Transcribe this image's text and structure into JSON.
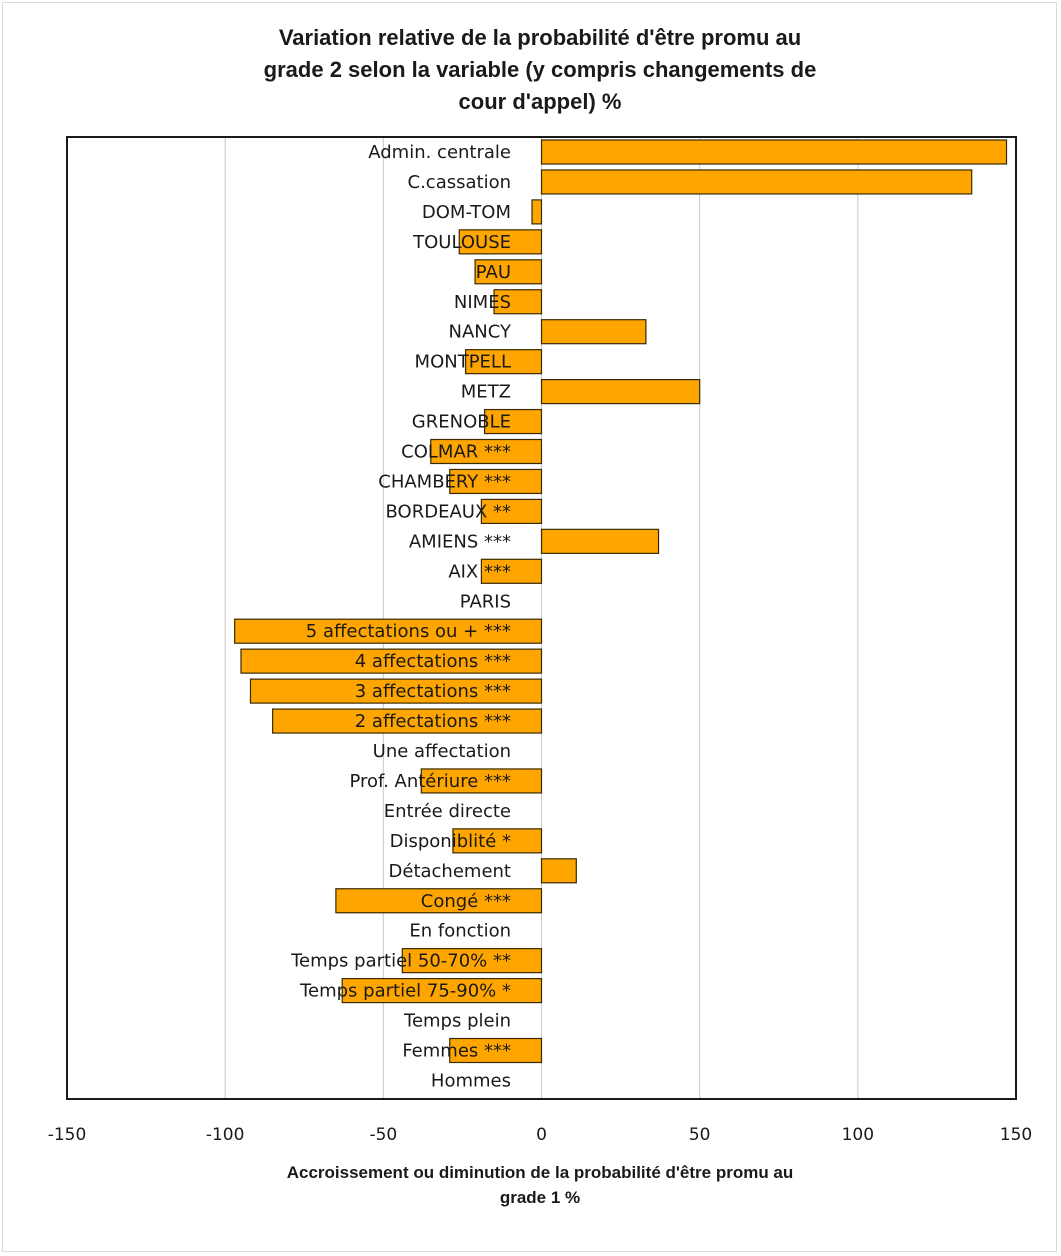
{
  "chart_data": {
    "type": "bar",
    "orientation": "horizontal",
    "title": [
      "Variation relative de la probabilité d'être promu au",
      "grade 2  selon la variable (y compris changements de",
      "cour d'appel) %"
    ],
    "xlabel": [
      "Accroissement ou diminution de la probabilité d'être promu au",
      "grade 1 %"
    ],
    "xlim": [
      -150,
      150
    ],
    "xticks": [
      "-150",
      "-100",
      "-50",
      "0",
      "50",
      "100",
      "150"
    ],
    "xtick_values": [
      -150,
      -100,
      -50,
      0,
      50,
      100,
      150
    ],
    "grid": "vertical",
    "bar_color": "#ffa500",
    "categories": [
      "Admin. centrale",
      "C.cassation",
      "DOM-TOM",
      "TOULOUSE",
      "PAU",
      "NIMES",
      "NANCY",
      "MONTPELL",
      "METZ",
      "GRENOBLE",
      "COLMAR ***",
      "CHAMBERY ***",
      "BORDEAUX **",
      "AMIENS ***",
      "AIX ***",
      "PARIS",
      "5 affectations ou +  ***",
      "4 affectations  ***",
      "3 affectations  ***",
      "2 affectations  ***",
      "Une affectation",
      "Prof. Antériure ***",
      "Entrée directe",
      "Disponiblité *",
      "Détachement",
      "Congé ***",
      "En fonction",
      "Temps partiel 50-70% **",
      "Temps partiel 75-90% *",
      "Temps plein",
      "Femmes ***",
      "Hommes"
    ],
    "values": [
      147,
      136,
      -3,
      -26,
      -21,
      -15,
      33,
      -24,
      50,
      -18,
      -35,
      -29,
      -19,
      37,
      -19,
      0,
      -97,
      -95,
      -92,
      -85,
      0,
      -38,
      0,
      -28,
      11,
      -65,
      0,
      -44,
      -63,
      0,
      -29,
      0
    ]
  }
}
